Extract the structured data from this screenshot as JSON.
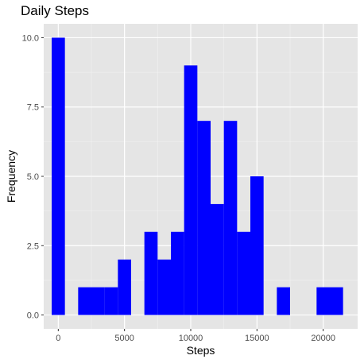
{
  "chart_data": {
    "type": "bar",
    "title": "Daily Steps",
    "xlabel": "Steps",
    "ylabel": "Frequency",
    "xlim": [
      -1100,
      22600
    ],
    "ylim": [
      -0.5,
      10.5
    ],
    "binwidth": 1000,
    "x_ticks": [
      0,
      5000,
      10000,
      15000,
      20000
    ],
    "x_tick_labels": [
      "0",
      "5000",
      "10000",
      "15000",
      "20000"
    ],
    "y_ticks": [
      0,
      2.5,
      5,
      7.5,
      10
    ],
    "y_tick_labels": [
      "0.0",
      "2.5",
      "5.0",
      "7.5",
      "10.0"
    ],
    "bins": [
      {
        "x": 0,
        "count": 10
      },
      {
        "x": 1000,
        "count": 0
      },
      {
        "x": 2000,
        "count": 1
      },
      {
        "x": 3000,
        "count": 1
      },
      {
        "x": 4000,
        "count": 1
      },
      {
        "x": 5000,
        "count": 2
      },
      {
        "x": 6000,
        "count": 0
      },
      {
        "x": 7000,
        "count": 3
      },
      {
        "x": 8000,
        "count": 2
      },
      {
        "x": 9000,
        "count": 3
      },
      {
        "x": 10000,
        "count": 9
      },
      {
        "x": 11000,
        "count": 7
      },
      {
        "x": 12000,
        "count": 4
      },
      {
        "x": 13000,
        "count": 7
      },
      {
        "x": 14000,
        "count": 3
      },
      {
        "x": 15000,
        "count": 5
      },
      {
        "x": 16000,
        "count": 0
      },
      {
        "x": 17000,
        "count": 1
      },
      {
        "x": 18000,
        "count": 0
      },
      {
        "x": 19000,
        "count": 0
      },
      {
        "x": 20000,
        "count": 1
      },
      {
        "x": 21000,
        "count": 1
      }
    ],
    "grid": true,
    "colors": {
      "bar": "#0000ff",
      "panel": "#e5e5e5",
      "grid_major": "#ffffff",
      "grid_minor": "#f2f2f2"
    }
  }
}
